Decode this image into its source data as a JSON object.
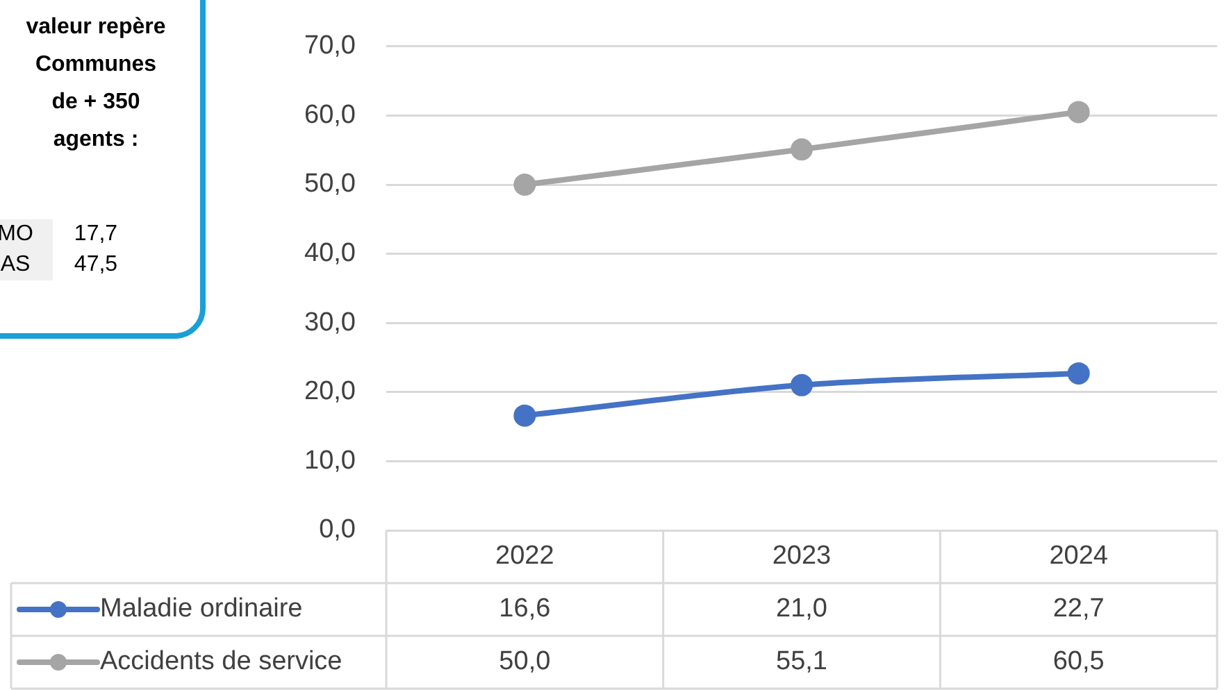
{
  "chart_data": {
    "type": "line",
    "categories": [
      "2022",
      "2023",
      "2024"
    ],
    "series": [
      {
        "name": "Maladie ordinaire",
        "color": "#4472c4",
        "values": [
          16.6,
          21.0,
          22.7
        ]
      },
      {
        "name": "Accidents de service",
        "color": "#a5a5a5",
        "values": [
          50.0,
          55.1,
          60.5
        ]
      }
    ],
    "ylim": [
      0,
      70
    ],
    "yticks": [
      {
        "value": 0,
        "label": "0,0"
      },
      {
        "value": 10,
        "label": "10,0"
      },
      {
        "value": 20,
        "label": "20,0"
      },
      {
        "value": 30,
        "label": "30,0"
      },
      {
        "value": 40,
        "label": "40,0"
      },
      {
        "value": 50,
        "label": "50,0"
      },
      {
        "value": 60,
        "label": "60,0"
      },
      {
        "value": 70,
        "label": "70,0"
      }
    ],
    "value_labels": [
      [
        "16,6",
        "21,0",
        "22,7"
      ],
      [
        "50,0",
        "55,1",
        "60,5"
      ]
    ],
    "grid": "y",
    "legend": "bottom",
    "marker": "circle",
    "line_style": "solid",
    "annotations": [
      "valeur repère Communes de + 350 agents :",
      "MO",
      "17,7",
      "AS",
      "47,5"
    ]
  }
}
